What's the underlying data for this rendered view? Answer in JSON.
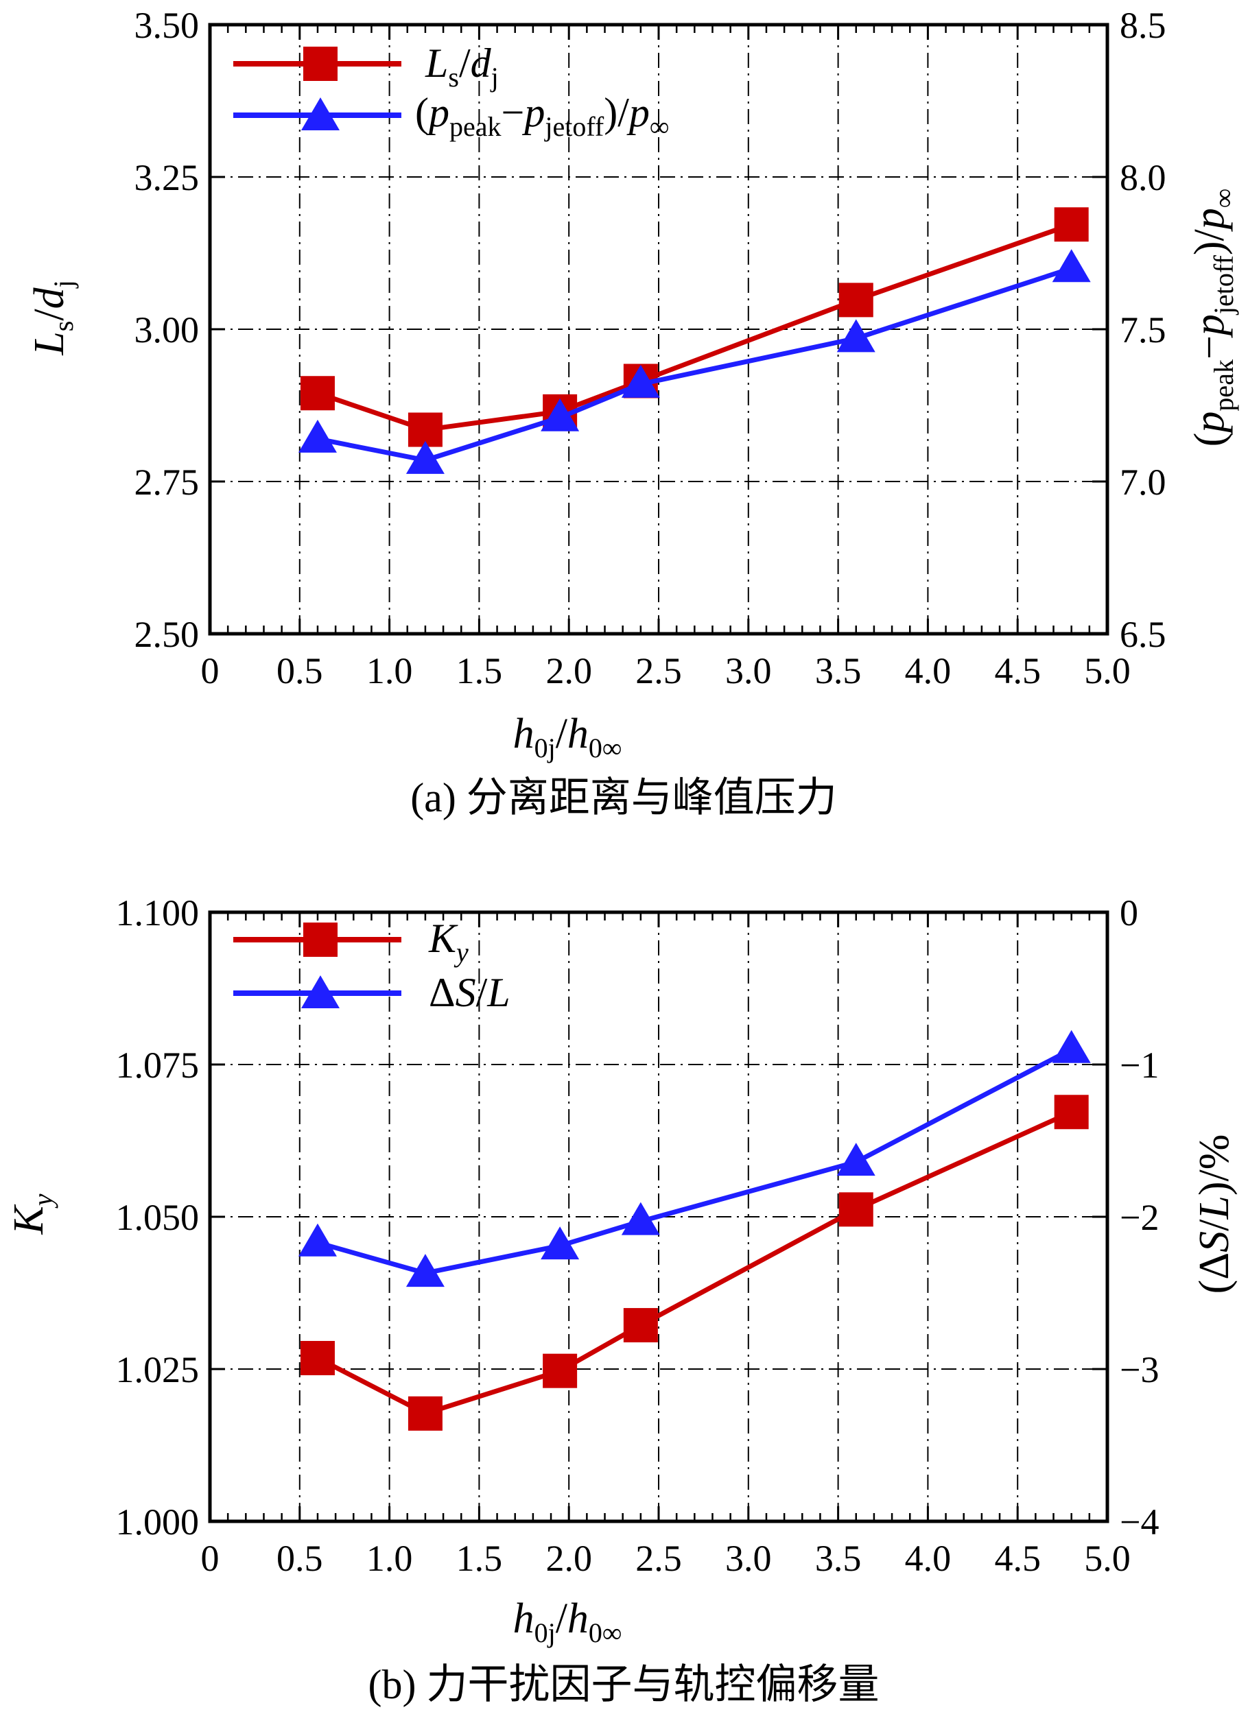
{
  "chart_data": [
    {
      "type": "line",
      "x": [
        0.6,
        1.2,
        1.95,
        2.4,
        3.6,
        4.8
      ],
      "series": [
        {
          "name": "Ls/dj",
          "axis": "left",
          "color": "#cc0000",
          "marker": "square",
          "values": [
            2.895,
            2.835,
            2.865,
            2.915,
            3.048,
            3.172
          ]
        },
        {
          "name": "(ppeak−pjetoff)/p∞",
          "axis": "right",
          "color": "#1f1fff",
          "marker": "triangle",
          "values": [
            7.14,
            7.07,
            7.21,
            7.32,
            7.47,
            7.7
          ]
        }
      ],
      "xlim": [
        0,
        5.0
      ],
      "ylim": [
        2.5,
        3.5
      ],
      "y2lim": [
        6.5,
        8.5
      ],
      "x_ticks": [
        "0",
        "0.5",
        "1.0",
        "1.5",
        "2.0",
        "2.5",
        "3.0",
        "3.5",
        "4.0",
        "4.5",
        "5.0"
      ],
      "y_ticks": [
        "2.50",
        "2.75",
        "3.00",
        "3.25",
        "3.50"
      ],
      "y2_ticks": [
        "6.5",
        "7.0",
        "7.5",
        "8.0",
        "8.5"
      ],
      "grid": true,
      "legend": "top-left",
      "caption": "(a) 分离距离与峰值压力"
    },
    {
      "type": "line",
      "x": [
        0.6,
        1.2,
        1.95,
        2.4,
        3.6,
        4.8
      ],
      "series": [
        {
          "name": "Ky",
          "axis": "left",
          "color": "#cc0000",
          "marker": "square",
          "values": [
            1.0268,
            1.0177,
            1.0247,
            1.0322,
            1.0512,
            1.0672
          ]
        },
        {
          "name": "ΔS/L",
          "axis": "right",
          "color": "#1f1fff",
          "marker": "triangle",
          "values": [
            -2.17,
            -2.37,
            -2.19,
            -2.03,
            -1.64,
            -0.9
          ]
        }
      ],
      "xlim": [
        0,
        5.0
      ],
      "ylim": [
        1.0,
        1.1
      ],
      "y2lim": [
        -4,
        0
      ],
      "x_ticks": [
        "0",
        "0.5",
        "1.0",
        "1.5",
        "2.0",
        "2.5",
        "3.0",
        "3.5",
        "4.0",
        "4.5",
        "5.0"
      ],
      "y_ticks": [
        "1.000",
        "1.025",
        "1.050",
        "1.075",
        "1.100"
      ],
      "y2_ticks": [
        "−4",
        "−3",
        "−2",
        "−1",
        "0"
      ],
      "grid": true,
      "legend": "top-left",
      "caption": "(b) 力干扰因子与轨控偏移量"
    }
  ]
}
